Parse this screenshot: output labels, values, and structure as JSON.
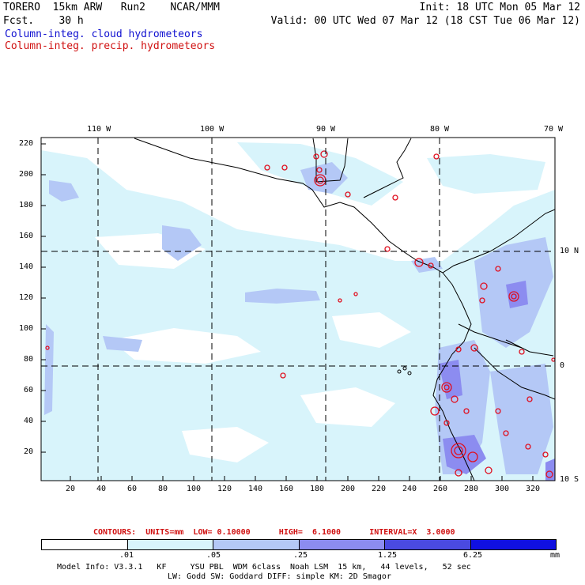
{
  "header": {
    "model_line": "TORERO  15km ARW   Run2    NCAR/MMM",
    "fcst_line": "Fcst.    30 h",
    "init_line": "Init: 18 UTC Mon 05 Mar 12",
    "valid_line": "Valid: 00 UTC Wed 07 Mar 12 (18 CST Tue 06 Mar 12)",
    "field1": "Column-integ. cloud hydrometeors",
    "field2": "Column-integ. precip. hydrometeors"
  },
  "map": {
    "top_lon_labels": [
      "110 W",
      "100 W",
      "90 W",
      "80 W",
      "70 W"
    ],
    "right_lat_labels": [
      "10 N",
      "0",
      "10 S"
    ],
    "left_y_ticks": [
      "220",
      "200",
      "180",
      "160",
      "140",
      "120",
      "100",
      "80",
      "60",
      "40",
      "20"
    ],
    "bottom_x_ticks": [
      "20",
      "40",
      "60",
      "80",
      "100",
      "120",
      "140",
      "160",
      "180",
      "200",
      "220",
      "240",
      "260",
      "280",
      "300",
      "320"
    ]
  },
  "contours": {
    "text": "CONTOURS:  UNITS=mm  LOW= 0.10000      HIGH=  6.1000      INTERVAL=X  3.0000"
  },
  "colorbar": {
    "labels": [
      ".01",
      ".05",
      ".25",
      "1.25",
      "6.25",
      "mm"
    ],
    "colors": [
      "#ffffff",
      "#d8f4fb",
      "#b4c8f6",
      "#8c8cf0",
      "#4a4ae0",
      "#1010e0"
    ]
  },
  "footer": {
    "line1": "Model Info: V3.3.1   KF     YSU PBL  WDM 6class  Noah LSM  15 km,   44 levels,   52 sec",
    "line2": "LW: Godd SW: Goddard DIFF: simple KM: 2D Smagor"
  }
}
